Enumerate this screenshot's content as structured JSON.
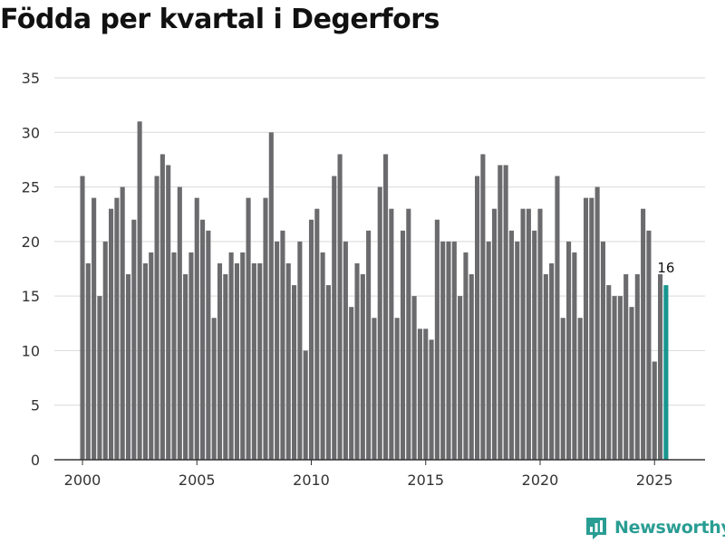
{
  "chart_data": {
    "type": "bar",
    "title": "Födda per kvartal i Degerfors",
    "xlabel": "",
    "ylabel": "",
    "ylim": [
      0,
      35
    ],
    "yticks": [
      0,
      5,
      10,
      15,
      20,
      25,
      30,
      35
    ],
    "xticks": [
      "2000",
      "2005",
      "2010",
      "2015",
      "2020",
      "2025"
    ],
    "x_start_year": 2000,
    "grid": true,
    "highlight_label": "16",
    "colors": {
      "bar": "#6b6b6e",
      "highlight": "#17968f",
      "grid": "#d9d9d9",
      "axis": "#333333"
    },
    "values": [
      26,
      18,
      24,
      15,
      20,
      23,
      24,
      25,
      17,
      22,
      31,
      18,
      19,
      26,
      28,
      27,
      19,
      25,
      17,
      19,
      24,
      22,
      21,
      13,
      18,
      17,
      19,
      18,
      19,
      24,
      18,
      18,
      24,
      30,
      20,
      21,
      18,
      16,
      20,
      10,
      22,
      23,
      19,
      16,
      26,
      28,
      20,
      14,
      18,
      17,
      21,
      13,
      25,
      28,
      23,
      13,
      21,
      23,
      15,
      12,
      12,
      11,
      22,
      20,
      20,
      20,
      15,
      19,
      17,
      26,
      28,
      20,
      23,
      27,
      27,
      21,
      20,
      23,
      23,
      21,
      23,
      17,
      18,
      26,
      13,
      20,
      19,
      13,
      24,
      24,
      25,
      20,
      16,
      15,
      15,
      17,
      14,
      17,
      23,
      21,
      9,
      17,
      16
    ]
  },
  "brand": {
    "name": "Newsworthy",
    "icon": "newsworthy-logo-icon",
    "color": "#2a9d93"
  }
}
